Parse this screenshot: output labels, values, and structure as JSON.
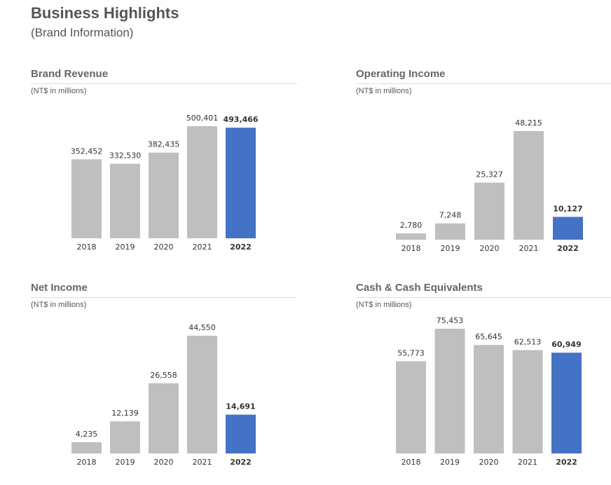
{
  "page": {
    "title": "Business Highlights",
    "subtitle": "(Brand Information)"
  },
  "colors": {
    "bar_default": "#bfbfbf",
    "bar_highlight": "#4472c4",
    "text": "#555555"
  },
  "chart_data": [
    {
      "type": "bar",
      "title": "Brand Revenue",
      "subtitle": "(NT$ in millions)",
      "categories": [
        "2018",
        "2019",
        "2020",
        "2021",
        "2022"
      ],
      "values": [
        352452,
        332530,
        382435,
        500401,
        493466
      ],
      "value_labels": [
        "352,452",
        "332,530",
        "382,435",
        "500,401",
        "493,466"
      ],
      "highlight_index": 4,
      "ylim": [
        0,
        500401
      ],
      "grid": false,
      "legend": "none"
    },
    {
      "type": "bar",
      "title": "Operating Income",
      "subtitle": "(NT$ in millions)",
      "categories": [
        "2018",
        "2019",
        "2020",
        "2021",
        "2022"
      ],
      "values": [
        2780,
        7248,
        25327,
        48215,
        10127
      ],
      "value_labels": [
        "2,780",
        "7,248",
        "25,327",
        "48,215",
        "10,127"
      ],
      "highlight_index": 4,
      "ylim": [
        0,
        48215
      ],
      "grid": false,
      "legend": "none"
    },
    {
      "type": "bar",
      "title": "Net Income",
      "subtitle": "(NT$ in millions)",
      "categories": [
        "2018",
        "2019",
        "2020",
        "2021",
        "2022"
      ],
      "values": [
        4235,
        12139,
        26558,
        44550,
        14691
      ],
      "value_labels": [
        "4,235",
        "12,139",
        "26,558",
        "44,550",
        "14,691"
      ],
      "highlight_index": 4,
      "ylim": [
        0,
        44550
      ],
      "grid": false,
      "legend": "none"
    },
    {
      "type": "bar",
      "title": "Cash & Cash Equivalents",
      "subtitle": "(NT$ in millions)",
      "categories": [
        "2018",
        "2019",
        "2020",
        "2021",
        "2022"
      ],
      "values": [
        55773,
        75453,
        65645,
        62513,
        60949
      ],
      "value_labels": [
        "55,773",
        "75,453",
        "65,645",
        "62,513",
        "60,949"
      ],
      "highlight_index": 4,
      "ylim": [
        0,
        75453
      ],
      "grid": false,
      "legend": "none"
    }
  ]
}
